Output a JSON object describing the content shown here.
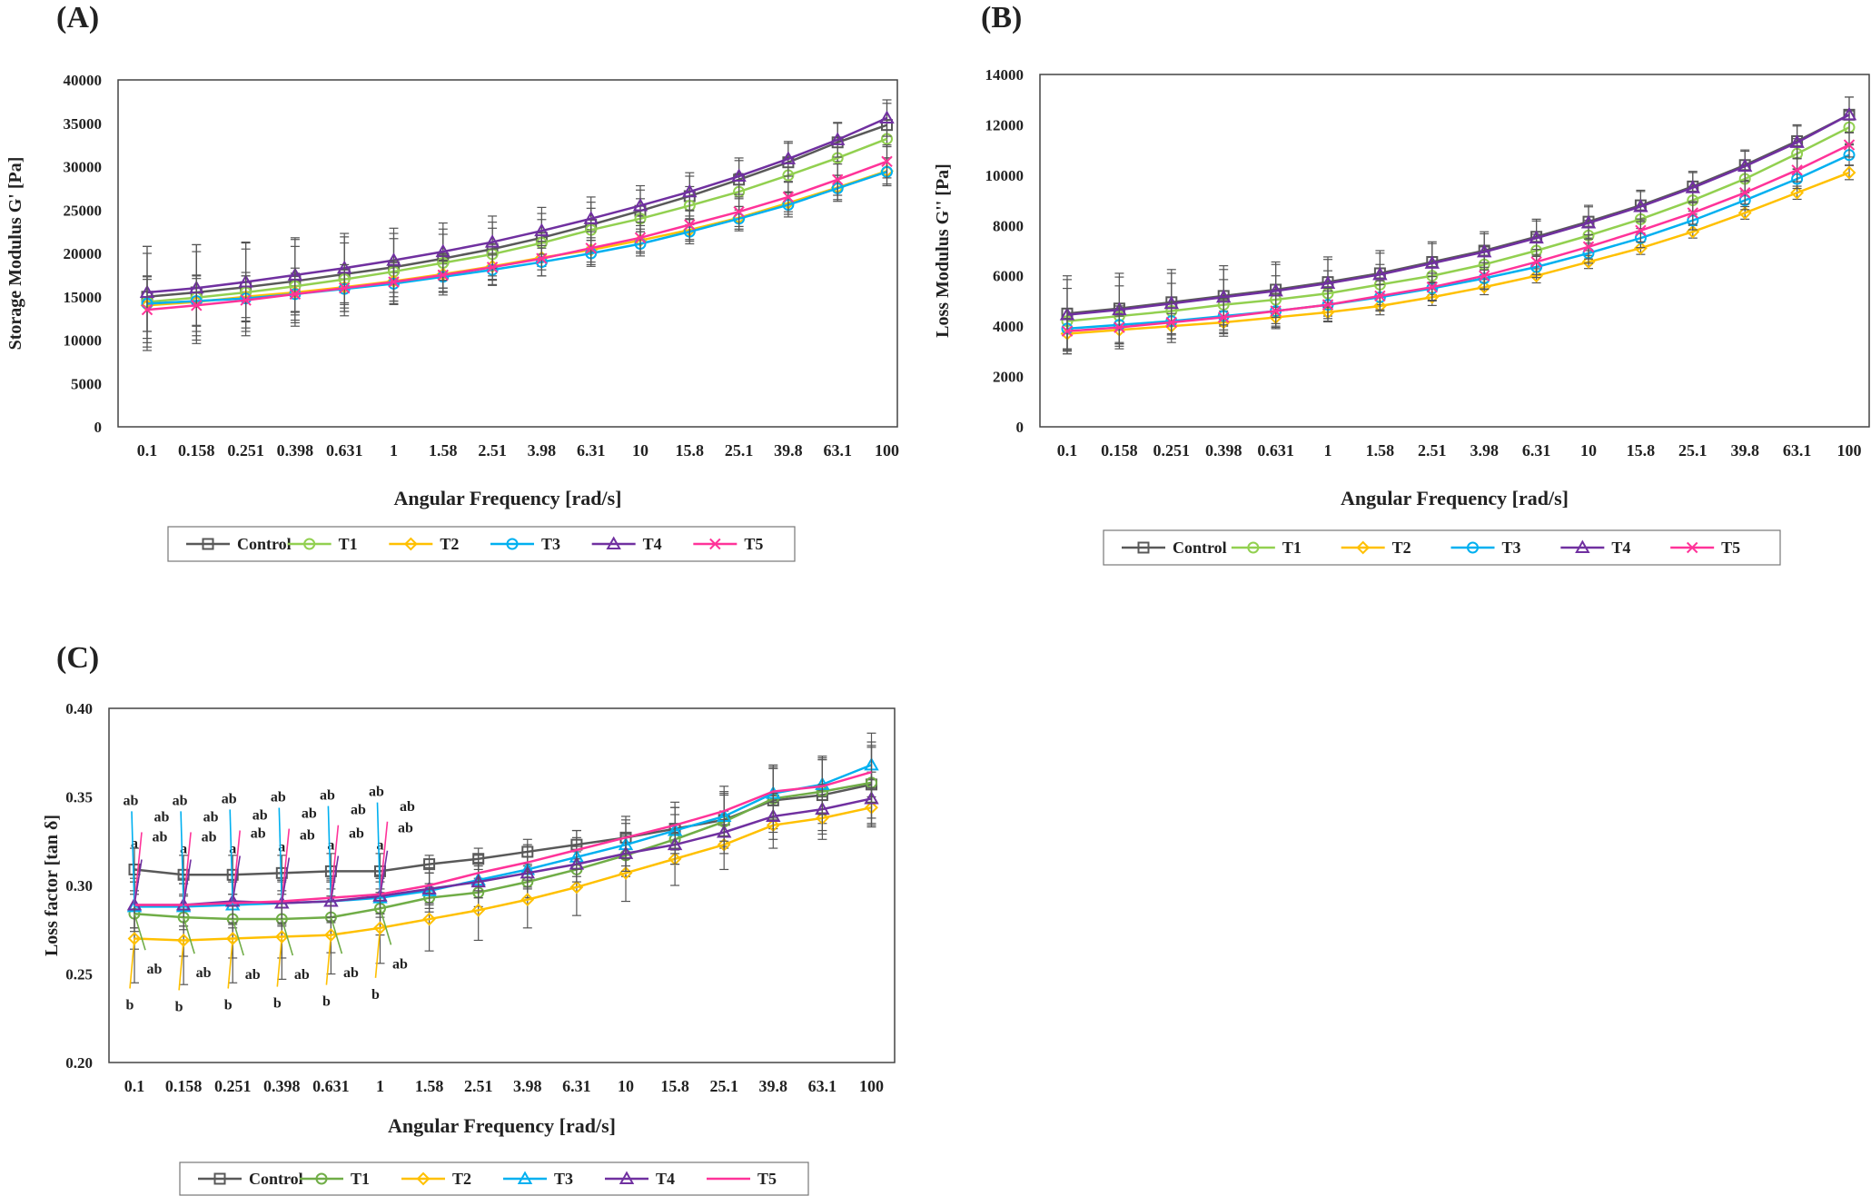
{
  "colors": {
    "control": "#595959",
    "t1": "#92d050",
    "t2": "#ffc000",
    "t3": "#00b0f0",
    "t4": "#7030a0",
    "t5": "#ff3399",
    "t1_c": "#70ad47"
  },
  "chart_data": [
    {
      "type": "line",
      "panel_label": "(A)",
      "title": "",
      "xlabel": "Angular Frequency [rad/s]",
      "ylabel": "Storage Modulus  G' [Pa]",
      "ylim": [
        0,
        40000
      ],
      "yticks": [
        "0",
        "5000",
        "10000",
        "15000",
        "20000",
        "25000",
        "30000",
        "35000",
        "40000"
      ],
      "categories": [
        "0.1",
        "0.158",
        "0.251",
        "0.398",
        "0.631",
        "1",
        "1.58",
        "2.51",
        "3.98",
        "6.31",
        "10",
        "15.8",
        "25.1",
        "39.8",
        "63.1",
        "100"
      ],
      "legend_position": "bottom",
      "series": [
        {
          "name": "Control",
          "values": [
            15000,
            15500,
            16100,
            16800,
            17600,
            18400,
            19400,
            20500,
            21800,
            23300,
            24900,
            26600,
            28500,
            30500,
            32800,
            34800
          ],
          "errors": [
            5800,
            5500,
            5100,
            4800,
            4300,
            3900,
            3400,
            3100,
            2800,
            2600,
            2400,
            2300,
            2200,
            2200,
            2200,
            2500
          ]
        },
        {
          "name": "T1",
          "values": [
            14400,
            14900,
            15500,
            16200,
            17000,
            17900,
            18900,
            19900,
            21200,
            22700,
            24000,
            25500,
            27100,
            29000,
            31000,
            33200
          ],
          "errors": [
            5600,
            5300,
            5000,
            4600,
            4200,
            3800,
            3300,
            3000,
            2700,
            2500,
            2300,
            2200,
            2100,
            2000,
            2000,
            2200
          ]
        },
        {
          "name": "T2",
          "values": [
            14000,
            14400,
            15000,
            15500,
            16100,
            16800,
            17600,
            18500,
            19500,
            20400,
            21500,
            22700,
            24100,
            25800,
            27600,
            29500
          ],
          "errors": [
            3000,
            2700,
            2400,
            2200,
            2000,
            1800,
            1600,
            1500,
            1400,
            1400,
            1300,
            1300,
            1300,
            1300,
            1400,
            1500
          ]
        },
        {
          "name": "T3",
          "values": [
            14200,
            14500,
            14800,
            15300,
            15900,
            16500,
            17300,
            18100,
            19000,
            20000,
            21100,
            22500,
            24000,
            25600,
            27500,
            29400
          ],
          "errors": [
            3200,
            2900,
            2600,
            2400,
            2200,
            2000,
            1800,
            1700,
            1600,
            1500,
            1400,
            1400,
            1400,
            1400,
            1500,
            1600
          ]
        },
        {
          "name": "T4",
          "values": [
            15500,
            16000,
            16700,
            17500,
            18300,
            19200,
            20200,
            21300,
            22600,
            24000,
            25500,
            27100,
            28900,
            30900,
            33100,
            35600
          ],
          "errors": [
            5300,
            5000,
            4600,
            4300,
            4000,
            3700,
            3300,
            3000,
            2700,
            2500,
            2300,
            2200,
            2100,
            2000,
            2000,
            2100
          ]
        },
        {
          "name": "T5",
          "values": [
            13500,
            14000,
            14600,
            15300,
            16000,
            16700,
            17500,
            18400,
            19400,
            20600,
            21800,
            23300,
            24800,
            26500,
            28500,
            30600
          ],
          "errors": [
            3800,
            3500,
            3200,
            3000,
            2700,
            2500,
            2300,
            2100,
            2000,
            1900,
            1800,
            1700,
            1700,
            1700,
            1800,
            1900
          ]
        }
      ]
    },
    {
      "type": "line",
      "panel_label": "(B)",
      "title": "",
      "xlabel": "Angular Frequency [rad/s]",
      "ylabel": "Loss Modulus  G'' [Pa]",
      "ylim": [
        0,
        14000
      ],
      "yticks": [
        "0",
        "2000",
        "4000",
        "6000",
        "8000",
        "10000",
        "12000",
        "14000"
      ],
      "categories": [
        "0.1",
        "0.158",
        "0.251",
        "0.398",
        "0.631",
        "1",
        "1.58",
        "2.51",
        "3.98",
        "6.31",
        "10",
        "15.8",
        "25.1",
        "39.8",
        "63.1",
        "100"
      ],
      "legend_position": "bottom",
      "series": [
        {
          "name": "Control",
          "values": [
            4500,
            4700,
            4950,
            5200,
            5450,
            5750,
            6100,
            6550,
            7000,
            7550,
            8150,
            8800,
            9550,
            10400,
            11350,
            12400
          ],
          "errors": [
            1500,
            1400,
            1300,
            1200,
            1100,
            1000,
            900,
            800,
            750,
            700,
            650,
            600,
            600,
            600,
            650,
            700
          ]
        },
        {
          "name": "T1",
          "values": [
            4200,
            4400,
            4600,
            4850,
            5050,
            5300,
            5650,
            6000,
            6450,
            7000,
            7600,
            8250,
            9000,
            9850,
            10850,
            11900
          ],
          "errors": [
            1300,
            1200,
            1100,
            1000,
            950,
            900,
            800,
            750,
            700,
            650,
            600,
            550,
            550,
            550,
            600,
            650
          ]
        },
        {
          "name": "T2",
          "values": [
            3700,
            3850,
            4000,
            4150,
            4350,
            4550,
            4800,
            5150,
            5550,
            6000,
            6550,
            7100,
            7750,
            8500,
            9300,
            10100
          ],
          "errors": [
            600,
            550,
            500,
            450,
            400,
            380,
            350,
            330,
            300,
            280,
            260,
            250,
            250,
            250,
            260,
            280
          ]
        },
        {
          "name": "T3",
          "values": [
            3900,
            4050,
            4200,
            4400,
            4600,
            4850,
            5150,
            5500,
            5900,
            6350,
            6900,
            7500,
            8200,
            9000,
            9850,
            10800
          ],
          "errors": [
            800,
            750,
            700,
            650,
            600,
            550,
            500,
            470,
            440,
            420,
            400,
            380,
            370,
            370,
            380,
            400
          ]
        },
        {
          "name": "T4",
          "values": [
            4450,
            4650,
            4900,
            5150,
            5400,
            5700,
            6050,
            6500,
            6950,
            7500,
            8100,
            8750,
            9500,
            10350,
            11300,
            12400
          ],
          "errors": [
            1400,
            1300,
            1200,
            1100,
            1050,
            950,
            850,
            780,
            720,
            680,
            640,
            600,
            600,
            600,
            650,
            700
          ]
        },
        {
          "name": "T5",
          "values": [
            3800,
            3950,
            4150,
            4350,
            4600,
            4850,
            5200,
            5550,
            6000,
            6550,
            7150,
            7800,
            8500,
            9300,
            10200,
            11200
          ],
          "errors": [
            900,
            850,
            800,
            750,
            700,
            650,
            600,
            550,
            520,
            500,
            480,
            460,
            450,
            450,
            460,
            480
          ]
        }
      ]
    },
    {
      "type": "line",
      "panel_label": "(C)",
      "title": "",
      "xlabel": "Angular Frequency [rad/s]",
      "ylabel": "Loss factor [tan δ]",
      "ylim": [
        0.2,
        0.4
      ],
      "yticks": [
        "0.20",
        "0.25",
        "0.30",
        "0.35",
        "0.40"
      ],
      "categories": [
        "0.1",
        "0.158",
        "0.251",
        "0.398",
        "0.631",
        "1",
        "1.58",
        "2.51",
        "3.98",
        "6.31",
        "10",
        "15.8",
        "25.1",
        "39.8",
        "63.1",
        "100"
      ],
      "legend_position": "bottom",
      "series": [
        {
          "name": "Control",
          "values": [
            0.309,
            0.306,
            0.306,
            0.307,
            0.308,
            0.308,
            0.312,
            0.315,
            0.319,
            0.323,
            0.327,
            0.332,
            0.337,
            0.348,
            0.351,
            0.357
          ],
          "errors": [
            0.012,
            0.011,
            0.011,
            0.01,
            0.01,
            0.01,
            0.005,
            0.006,
            0.007,
            0.008,
            0.01,
            0.012,
            0.015,
            0.018,
            0.02,
            0.022
          ]
        },
        {
          "name": "T1",
          "values": [
            0.284,
            0.282,
            0.281,
            0.281,
            0.282,
            0.287,
            0.293,
            0.296,
            0.302,
            0.309,
            0.317,
            0.326,
            0.336,
            0.349,
            0.353,
            0.358
          ],
          "errors": [
            0.02,
            0.022,
            0.022,
            0.022,
            0.02,
            0.015,
            0.008,
            0.008,
            0.009,
            0.01,
            0.012,
            0.014,
            0.015,
            0.017,
            0.018,
            0.02
          ]
        },
        {
          "name": "T2",
          "values": [
            0.27,
            0.269,
            0.27,
            0.271,
            0.272,
            0.276,
            0.281,
            0.286,
            0.292,
            0.299,
            0.307,
            0.315,
            0.323,
            0.334,
            0.338,
            0.344
          ],
          "errors": [
            0.025,
            0.025,
            0.025,
            0.024,
            0.022,
            0.02,
            0.018,
            0.017,
            0.016,
            0.016,
            0.016,
            0.015,
            0.014,
            0.013,
            0.012,
            0.011
          ]
        },
        {
          "name": "T3",
          "values": [
            0.288,
            0.288,
            0.289,
            0.29,
            0.291,
            0.293,
            0.297,
            0.303,
            0.309,
            0.316,
            0.323,
            0.331,
            0.339,
            0.352,
            0.357,
            0.368
          ],
          "errors": [
            0.014,
            0.013,
            0.013,
            0.013,
            0.012,
            0.011,
            0.01,
            0.01,
            0.01,
            0.011,
            0.012,
            0.013,
            0.014,
            0.015,
            0.016,
            0.018
          ]
        },
        {
          "name": "T4",
          "values": [
            0.289,
            0.289,
            0.291,
            0.29,
            0.291,
            0.294,
            0.298,
            0.302,
            0.307,
            0.312,
            0.318,
            0.323,
            0.33,
            0.339,
            0.343,
            0.349
          ],
          "errors": [
            0.013,
            0.012,
            0.012,
            0.012,
            0.011,
            0.01,
            0.009,
            0.009,
            0.009,
            0.01,
            0.01,
            0.011,
            0.012,
            0.013,
            0.014,
            0.015
          ]
        },
        {
          "name": "T5",
          "values": [
            0.289,
            0.289,
            0.29,
            0.291,
            0.293,
            0.295,
            0.3,
            0.307,
            0.313,
            0.32,
            0.327,
            0.334,
            0.342,
            0.353,
            0.356,
            0.364
          ],
          "errors": [
            0.013,
            0.012,
            0.012,
            0.012,
            0.011,
            0.011,
            0.01,
            0.01,
            0.01,
            0.011,
            0.012,
            0.013,
            0.014,
            0.015,
            0.016,
            0.017
          ]
        }
      ],
      "annotations": [
        {
          "text": "a",
          "series": "Control",
          "index": 0
        },
        {
          "text": "a",
          "series": "Control",
          "index": 1
        },
        {
          "text": "a",
          "series": "Control",
          "index": 2
        },
        {
          "text": "a",
          "series": "Control",
          "index": 3
        },
        {
          "text": "a",
          "series": "Control",
          "index": 4
        },
        {
          "text": "a",
          "series": "Control",
          "index": 5
        },
        {
          "text": "ab",
          "series": "T3",
          "index": 0
        },
        {
          "text": "ab",
          "series": "T3",
          "index": 1
        },
        {
          "text": "ab",
          "series": "T3",
          "index": 2
        },
        {
          "text": "ab",
          "series": "T3",
          "index": 3
        },
        {
          "text": "ab",
          "series": "T3",
          "index": 4
        },
        {
          "text": "ab",
          "series": "T3",
          "index": 5
        },
        {
          "text": "ab",
          "series": "T5",
          "index": 0
        },
        {
          "text": "ab",
          "series": "T5",
          "index": 1
        },
        {
          "text": "ab",
          "series": "T5",
          "index": 2
        },
        {
          "text": "ab",
          "series": "T5",
          "index": 3
        },
        {
          "text": "ab",
          "series": "T5",
          "index": 4
        },
        {
          "text": "ab",
          "series": "T5",
          "index": 5
        },
        {
          "text": "ab",
          "series": "T4",
          "index": 0
        },
        {
          "text": "ab",
          "series": "T4",
          "index": 1
        },
        {
          "text": "ab",
          "series": "T4",
          "index": 2
        },
        {
          "text": "ab",
          "series": "T4",
          "index": 3
        },
        {
          "text": "ab",
          "series": "T4",
          "index": 4
        },
        {
          "text": "ab",
          "series": "T4",
          "index": 5
        },
        {
          "text": "ab",
          "series": "T1",
          "index": 0
        },
        {
          "text": "ab",
          "series": "T1",
          "index": 1
        },
        {
          "text": "ab",
          "series": "T1",
          "index": 2
        },
        {
          "text": "ab",
          "series": "T1",
          "index": 3
        },
        {
          "text": "ab",
          "series": "T1",
          "index": 4
        },
        {
          "text": "ab",
          "series": "T1",
          "index": 5
        },
        {
          "text": "b",
          "series": "T2",
          "index": 0
        },
        {
          "text": "b",
          "series": "T2",
          "index": 1
        },
        {
          "text": "b",
          "series": "T2",
          "index": 2
        },
        {
          "text": "b",
          "series": "T2",
          "index": 3
        },
        {
          "text": "b",
          "series": "T2",
          "index": 4
        },
        {
          "text": "b",
          "series": "T2",
          "index": 5
        }
      ]
    }
  ]
}
